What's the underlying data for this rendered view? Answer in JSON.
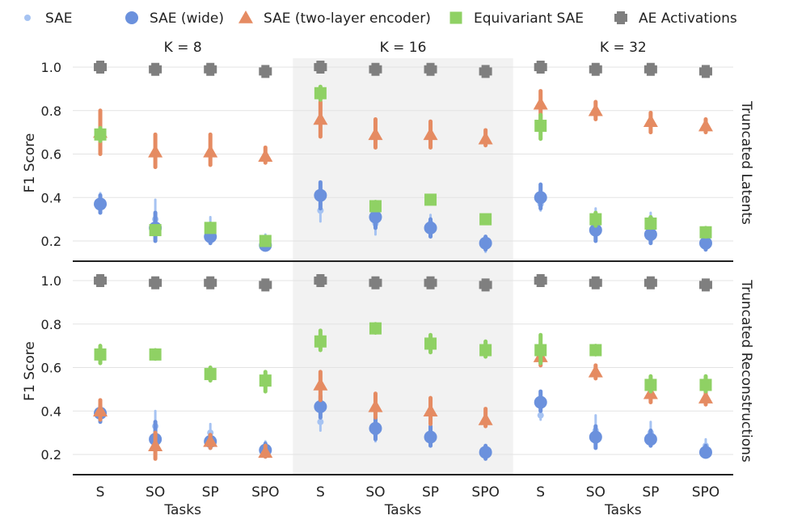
{
  "chart_data": {
    "type": "scatter",
    "subtype": "point-range facet grid",
    "legend": {
      "placement": "top",
      "entries": [
        {
          "id": "sae",
          "label": "SAE",
          "marker": "dot",
          "color": "#a6c3f2"
        },
        {
          "id": "sae_wide",
          "label": "SAE (wide)",
          "marker": "circle",
          "color": "#6b91dd"
        },
        {
          "id": "sae_two_layer",
          "label": "SAE (two-layer encoder)",
          "marker": "triangle",
          "color": "#e58b62"
        },
        {
          "id": "equivariant",
          "label": "Equivariant SAE",
          "marker": "square",
          "color": "#8fd164"
        },
        {
          "id": "ae",
          "label": "AE Activations",
          "marker": "plus",
          "color": "#7f7f7f"
        }
      ]
    },
    "columns": [
      "K = 8",
      "K = 16",
      "K = 32"
    ],
    "rows": [
      "Truncated Latents",
      "Truncated Reconstructions"
    ],
    "categories": [
      "S",
      "SO",
      "SP",
      "SPO"
    ],
    "xlabel": "Tasks",
    "ylabel": "F1 Score",
    "ylim": [
      0.1,
      1.05
    ],
    "yticks": [
      "0.2",
      "0.4",
      "0.6",
      "0.8",
      "1.0"
    ],
    "grid": true,
    "shaded_column": "K = 16",
    "panels": [
      {
        "row": "Truncated Latents",
        "column": "K = 8",
        "series": {
          "sae": {
            "values": [
              0.38,
              0.3,
              0.27,
              0.2
            ],
            "low": [
              0.34,
              0.22,
              0.22,
              0.16
            ],
            "high": [
              0.42,
              0.39,
              0.31,
              0.23
            ]
          },
          "sae_wide": {
            "values": [
              0.37,
              0.26,
              0.22,
              0.18
            ],
            "low": [
              0.33,
              0.2,
              0.19,
              0.16
            ],
            "high": [
              0.41,
              0.33,
              0.26,
              0.21
            ]
          },
          "sae_two_layer": {
            "values": [
              0.7,
              0.61,
              0.61,
              0.59
            ],
            "low": [
              0.6,
              0.54,
              0.55,
              0.56
            ],
            "high": [
              0.8,
              0.69,
              0.69,
              0.63
            ]
          },
          "equivariant": {
            "values": [
              0.69,
              0.25,
              0.26,
              0.2
            ],
            "low": [
              0.66,
              0.24,
              0.25,
              0.19
            ],
            "high": [
              0.72,
              0.26,
              0.28,
              0.22
            ]
          },
          "ae": {
            "values": [
              1.0,
              0.99,
              0.99,
              0.98
            ]
          }
        }
      },
      {
        "row": "Truncated Latents",
        "column": "K = 16",
        "series": {
          "sae": {
            "values": [
              0.34,
              0.28,
              0.28,
              0.18
            ],
            "low": [
              0.29,
              0.23,
              0.24,
              0.15
            ],
            "high": [
              0.38,
              0.33,
              0.32,
              0.21
            ]
          },
          "sae_wide": {
            "values": [
              0.41,
              0.31,
              0.26,
              0.19
            ],
            "low": [
              0.35,
              0.26,
              0.22,
              0.16
            ],
            "high": [
              0.47,
              0.36,
              0.3,
              0.22
            ]
          },
          "sae_two_layer": {
            "values": [
              0.76,
              0.69,
              0.69,
              0.67
            ],
            "low": [
              0.68,
              0.63,
              0.63,
              0.64
            ],
            "high": [
              0.84,
              0.76,
              0.75,
              0.71
            ]
          },
          "equivariant": {
            "values": [
              0.88,
              0.36,
              0.39,
              0.3
            ],
            "low": [
              0.85,
              0.35,
              0.38,
              0.3
            ],
            "high": [
              0.91,
              0.38,
              0.4,
              0.31
            ]
          },
          "ae": {
            "values": [
              1.0,
              0.99,
              0.99,
              0.98
            ]
          }
        }
      },
      {
        "row": "Truncated Latents",
        "column": "K = 32",
        "series": {
          "sae": {
            "values": [
              0.37,
              0.31,
              0.3,
              0.21
            ],
            "low": [
              0.34,
              0.26,
              0.26,
              0.18
            ],
            "high": [
              0.4,
              0.35,
              0.33,
              0.24
            ]
          },
          "sae_wide": {
            "values": [
              0.4,
              0.25,
              0.23,
              0.19
            ],
            "low": [
              0.35,
              0.2,
              0.19,
              0.16
            ],
            "high": [
              0.46,
              0.31,
              0.27,
              0.22
            ]
          },
          "sae_two_layer": {
            "values": [
              0.83,
              0.8,
              0.75,
              0.73
            ],
            "low": [
              0.76,
              0.76,
              0.7,
              0.7
            ],
            "high": [
              0.89,
              0.84,
              0.79,
              0.76
            ]
          },
          "equivariant": {
            "values": [
              0.73,
              0.3,
              0.28,
              0.24
            ],
            "low": [
              0.67,
              0.27,
              0.26,
              0.22
            ],
            "high": [
              0.78,
              0.33,
              0.31,
              0.26
            ]
          },
          "ae": {
            "values": [
              1.0,
              0.99,
              0.99,
              0.98
            ]
          }
        }
      },
      {
        "row": "Truncated Reconstructions",
        "column": "K = 8",
        "series": {
          "sae": {
            "values": [
              0.39,
              0.33,
              0.3,
              0.23
            ],
            "low": [
              0.36,
              0.26,
              0.26,
              0.2
            ],
            "high": [
              0.42,
              0.4,
              0.34,
              0.26
            ]
          },
          "sae_wide": {
            "values": [
              0.39,
              0.27,
              0.26,
              0.22
            ],
            "low": [
              0.35,
              0.23,
              0.23,
              0.19
            ],
            "high": [
              0.43,
              0.35,
              0.29,
              0.25
            ]
          },
          "sae_two_layer": {
            "values": [
              0.4,
              0.24,
              0.26,
              0.21
            ],
            "low": [
              0.36,
              0.18,
              0.23,
              0.19
            ],
            "high": [
              0.45,
              0.3,
              0.29,
              0.24
            ]
          },
          "equivariant": {
            "values": [
              0.66,
              0.66,
              0.57,
              0.54
            ],
            "low": [
              0.62,
              0.64,
              0.54,
              0.49
            ],
            "high": [
              0.7,
              0.68,
              0.6,
              0.58
            ]
          },
          "ae": {
            "values": [
              1.0,
              0.99,
              0.99,
              0.98
            ]
          }
        }
      },
      {
        "row": "Truncated Reconstructions",
        "column": "K = 16",
        "series": {
          "sae": {
            "values": [
              0.35,
              0.3,
              0.29,
              0.21
            ],
            "low": [
              0.31,
              0.26,
              0.25,
              0.18
            ],
            "high": [
              0.4,
              0.35,
              0.32,
              0.24
            ]
          },
          "sae_wide": {
            "values": [
              0.42,
              0.32,
              0.28,
              0.21
            ],
            "low": [
              0.37,
              0.27,
              0.24,
              0.18
            ],
            "high": [
              0.47,
              0.37,
              0.33,
              0.24
            ]
          },
          "sae_two_layer": {
            "values": [
              0.52,
              0.42,
              0.4,
              0.36
            ],
            "low": [
              0.45,
              0.37,
              0.34,
              0.33
            ],
            "high": [
              0.58,
              0.48,
              0.46,
              0.41
            ]
          },
          "equivariant": {
            "values": [
              0.72,
              0.78,
              0.71,
              0.68
            ],
            "low": [
              0.68,
              0.76,
              0.67,
              0.65
            ],
            "high": [
              0.77,
              0.8,
              0.75,
              0.72
            ]
          },
          "ae": {
            "values": [
              1.0,
              0.99,
              0.99,
              0.98
            ]
          }
        }
      },
      {
        "row": "Truncated Reconstructions",
        "column": "K = 32",
        "series": {
          "sae": {
            "values": [
              0.38,
              0.31,
              0.3,
              0.24
            ],
            "low": [
              0.36,
              0.26,
              0.26,
              0.21
            ],
            "high": [
              0.45,
              0.38,
              0.35,
              0.27
            ]
          },
          "sae_wide": {
            "values": [
              0.44,
              0.28,
              0.27,
              0.21
            ],
            "low": [
              0.4,
              0.23,
              0.24,
              0.19
            ],
            "high": [
              0.49,
              0.33,
              0.31,
              0.24
            ]
          },
          "sae_two_layer": {
            "values": [
              0.65,
              0.58,
              0.48,
              0.46
            ],
            "low": [
              0.61,
              0.55,
              0.44,
              0.43
            ],
            "high": [
              0.7,
              0.61,
              0.53,
              0.5
            ]
          },
          "equivariant": {
            "values": [
              0.68,
              0.68,
              0.52,
              0.52
            ],
            "low": [
              0.62,
              0.66,
              0.49,
              0.49
            ],
            "high": [
              0.75,
              0.7,
              0.56,
              0.56
            ]
          },
          "ae": {
            "values": [
              1.0,
              0.99,
              0.99,
              0.98
            ]
          }
        }
      }
    ]
  }
}
